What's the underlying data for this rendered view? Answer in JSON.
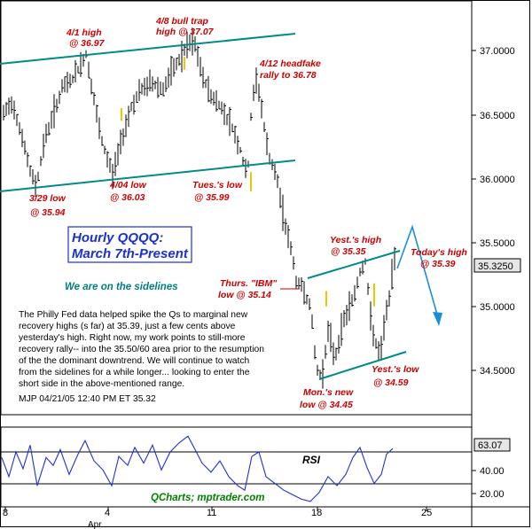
{
  "chart_data": [
    {
      "type": "ohlc",
      "title": "Hourly QQQQ: March 7th-Present",
      "title_lines": [
        "Hourly QQQQ:",
        "March 7th-Present"
      ],
      "y_ticks": [
        "37.0000",
        "36.5000",
        "36.0000",
        "35.5000",
        "35.0000",
        "34.5000"
      ],
      "y_tick_values": [
        37.0,
        36.5,
        36.0,
        35.5,
        35.0,
        34.5
      ],
      "ylim": [
        34.23,
        37.39
      ],
      "x_ticks": [
        "8",
        "4",
        "11",
        "18",
        "25"
      ],
      "x_tick_sub": "Apr",
      "last_price_label": "35.3250",
      "last_price": 35.325,
      "key_points": [
        {
          "label": "3/29 low",
          "value": 35.94
        },
        {
          "label": "4/1 high",
          "value": 36.97
        },
        {
          "label": "4/04 low",
          "value": 36.03
        },
        {
          "label": "4/8 bull trap high",
          "value": 37.07
        },
        {
          "label": "4/12 headfake rally to",
          "value": 36.78
        },
        {
          "label": "Tues.'s low",
          "value": 35.99
        },
        {
          "label": "Thurs. \"IBM\" low",
          "value": 35.14
        },
        {
          "label": "Mon.'s new low",
          "value": 34.45
        },
        {
          "label": "Yest.'s high",
          "value": 35.35
        },
        {
          "label": "Yest.'s low",
          "value": 34.59
        },
        {
          "label": "Today's high",
          "value": 35.39
        }
      ],
      "annotations": [
        {
          "id": "ann-4-1-high",
          "lines": [
            "4/1  high",
            "@ 36.97"
          ]
        },
        {
          "id": "ann-4-8-bull-trap",
          "lines": [
            "4/8 bull trap",
            "high @  37.07"
          ]
        },
        {
          "id": "ann-4-12-headfake",
          "lines": [
            "4/12 headfake",
            "rally to 36.78"
          ]
        },
        {
          "id": "ann-3-29-low",
          "lines": [
            "3/29 low",
            "@ 35.94"
          ]
        },
        {
          "id": "ann-4-04-low",
          "lines": [
            "4/04 low",
            "@ 36.03"
          ]
        },
        {
          "id": "ann-tues-low",
          "lines": [
            "Tues.'s low",
            "@ 35.99"
          ]
        },
        {
          "id": "ann-yest-high",
          "lines": [
            "Yest.'s high",
            "@ 35.35"
          ]
        },
        {
          "id": "ann-todays-high",
          "lines": [
            "Today's high",
            "@ 35.39"
          ]
        },
        {
          "id": "ann-thurs-ibm-low",
          "lines": [
            "Thurs. \"IBM\"",
            "low @ 35.14"
          ]
        },
        {
          "id": "ann-yest-low",
          "lines": [
            "Yest.'s low",
            "@ 34.59"
          ]
        },
        {
          "id": "ann-mon-new-low",
          "lines": [
            "Mon.'s new",
            "low @ 34.45"
          ]
        }
      ],
      "status_text": "We are on the sidelines",
      "commentary": [
        "The Philly Fed data helped spike the Qs to marginal new",
        "recovery highs (s far) at 35.39, just a few cents above",
        "yesterday's high. Right now, my work points to still-more",
        "recovery rally-- into the 35.50/60 area prior to the resumption",
        "of the the dominant downtrend. We will continue to watch",
        "from the sidelines for a while longer... looking to enter the",
        "short side in the above-mentioned range.",
        "MJP 04/21/05 12:40 PM ET 35.32"
      ],
      "colors": {
        "channel": "#008b8b",
        "annotation": "#cc0000",
        "title": "#1a2fd6",
        "bars": "#000000",
        "highlight_bar": "#e8c800",
        "projection": "#1a8fd6",
        "credit": "#008000"
      }
    },
    {
      "type": "line",
      "series": [
        {
          "name": "RSI"
        }
      ],
      "label": "RSI",
      "y_ticks": [
        "40.00",
        "20.00"
      ],
      "last_value_label": "63.07",
      "last_value": 63.07,
      "ylim": [
        12,
        82
      ],
      "credit": "QCharts; mptrader.com"
    }
  ]
}
